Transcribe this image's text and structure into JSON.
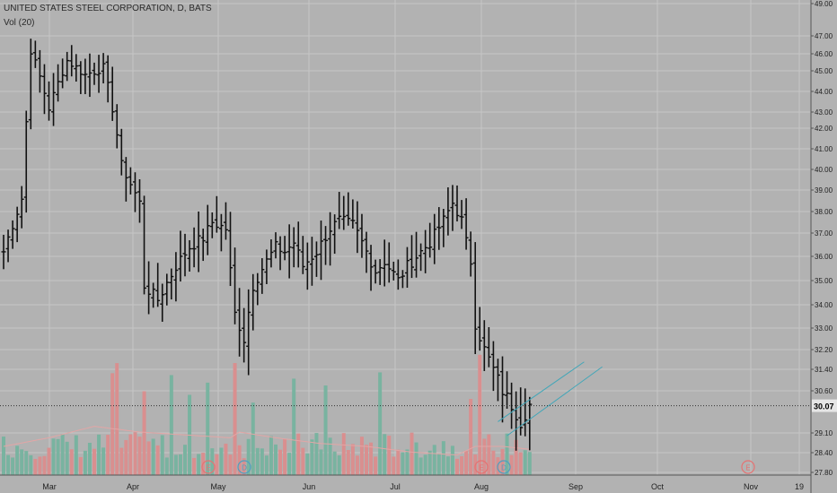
{
  "header": {
    "title": "UNITED STATES STEEL CORPORATION, D, BATS",
    "vol_label": "Vol (20)"
  },
  "chart_data": {
    "type": "ohlc",
    "price_axis": {
      "ticks": [
        "49.00",
        "47.00",
        "46.00",
        "45.00",
        "44.00",
        "43.00",
        "42.00",
        "41.00",
        "40.00",
        "39.00",
        "38.00",
        "37.00",
        "36.00",
        "35.00",
        "34.00",
        "33.00",
        "32.20",
        "31.40",
        "30.60",
        "29.10",
        "28.40",
        "27.80"
      ],
      "last_price": "30.07"
    },
    "time_axis": {
      "labels": [
        "Mar",
        "Apr",
        "May",
        "Jun",
        "Jul",
        "Aug",
        "Sep",
        "Oct",
        "Nov",
        "19"
      ]
    },
    "events": [
      {
        "label": "E",
        "month": "May",
        "kind": "earnings"
      },
      {
        "label": "D",
        "month": "May",
        "kind": "dividend"
      },
      {
        "label": "E",
        "month": "Aug",
        "kind": "earnings"
      },
      {
        "label": "D",
        "month": "Aug",
        "kind": "dividend"
      },
      {
        "label": "E",
        "month": "Nov",
        "kind": "earnings"
      }
    ],
    "close_anchors": [
      [
        0,
        36.2
      ],
      [
        4,
        38.6
      ],
      [
        6,
        46.2
      ],
      [
        10,
        43.2
      ],
      [
        14,
        45.6
      ],
      [
        18,
        44.8
      ],
      [
        22,
        45.2
      ],
      [
        24,
        43.2
      ],
      [
        26,
        40.2
      ],
      [
        30,
        38.4
      ],
      [
        31,
        34.8
      ],
      [
        34,
        34.2
      ],
      [
        38,
        35.6
      ],
      [
        41,
        36.4
      ],
      [
        44,
        36.8
      ],
      [
        46,
        37.5
      ],
      [
        49,
        37.2
      ],
      [
        51,
        33.6
      ],
      [
        53,
        32.6
      ],
      [
        55,
        34.8
      ],
      [
        57,
        35.5
      ],
      [
        60,
        36.4
      ],
      [
        62,
        36.2
      ],
      [
        64,
        36.6
      ],
      [
        66,
        35.6
      ],
      [
        69,
        36.2
      ],
      [
        72,
        37.2
      ],
      [
        74,
        37.6
      ],
      [
        77,
        37.4
      ],
      [
        80,
        36.2
      ],
      [
        82,
        35.4
      ],
      [
        84,
        35.8
      ],
      [
        87,
        35.0
      ],
      [
        89,
        35.6
      ],
      [
        92,
        36.2
      ],
      [
        94,
        36.6
      ],
      [
        97,
        37.6
      ],
      [
        99,
        38.4
      ],
      [
        101,
        37.6
      ],
      [
        102,
        36.6
      ],
      [
        103,
        35.8
      ],
      [
        104,
        33.2
      ],
      [
        106,
        32.2
      ],
      [
        108,
        31.4
      ],
      [
        110,
        30.6
      ],
      [
        112,
        30.1
      ],
      [
        114,
        29.5
      ],
      [
        116,
        30.1
      ]
    ],
    "volume_ma_anchors": [
      [
        0,
        0.2
      ],
      [
        10,
        0.26
      ],
      [
        20,
        0.34
      ],
      [
        30,
        0.3
      ],
      [
        40,
        0.28
      ],
      [
        50,
        0.26
      ],
      [
        52,
        0.3
      ],
      [
        60,
        0.26
      ],
      [
        70,
        0.22
      ],
      [
        80,
        0.2
      ],
      [
        90,
        0.16
      ],
      [
        100,
        0.14
      ],
      [
        104,
        0.2
      ],
      [
        110,
        0.2
      ],
      [
        116,
        0.18
      ]
    ],
    "trend_channel": {
      "lower": [
        [
          111,
          29.0
        ],
        [
          132,
          31.5
        ]
      ],
      "upper": [
        [
          109,
          29.5
        ],
        [
          128,
          31.7
        ]
      ]
    },
    "colors": {
      "background": "#b2b2b2",
      "grid": "#c6c6c6",
      "bars": "#111111",
      "vol_up": "#79b3a0",
      "vol_down": "#d98f8f",
      "vol_ma": "#e2a6a6",
      "channel": "#41a6b8",
      "event_e": "#e57373",
      "event_d": "#4f9fbf",
      "last_price_label": "#e6e6e6"
    }
  }
}
